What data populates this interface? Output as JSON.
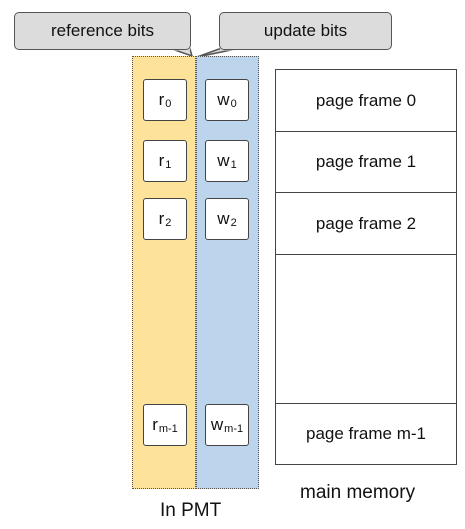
{
  "callouts": {
    "reference": "reference bits",
    "update": "update bits"
  },
  "reference_bits": [
    {
      "base": "r",
      "sub": "0"
    },
    {
      "base": "r",
      "sub": "1"
    },
    {
      "base": "r",
      "sub": "2"
    },
    {
      "base": "r",
      "sub": "m-1"
    }
  ],
  "update_bits": [
    {
      "base": "w",
      "sub": "0"
    },
    {
      "base": "w",
      "sub": "1"
    },
    {
      "base": "w",
      "sub": "2"
    },
    {
      "base": "w",
      "sub": "m-1"
    }
  ],
  "memory": {
    "frames": [
      "page frame 0",
      "page frame 1",
      "page frame 2",
      "",
      "page frame m-1"
    ]
  },
  "captions": {
    "pmt": "In PMT",
    "memory": "main memory"
  },
  "colors": {
    "reference_column": "#fde29a",
    "update_column": "#bcd5ec",
    "callout_fill": "#dcdcdc"
  }
}
